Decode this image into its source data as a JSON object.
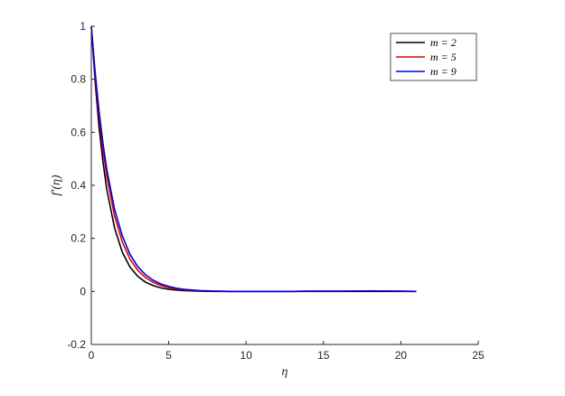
{
  "chart_data": {
    "type": "line",
    "xlabel": "η",
    "ylabel": "f′(η)",
    "xlim": [
      0,
      25
    ],
    "ylim": [
      -0.2,
      1
    ],
    "xticks": [
      "0",
      "5",
      "10",
      "15",
      "20",
      "25"
    ],
    "yticks": [
      "-0.2",
      "0",
      "0.2",
      "0.4",
      "0.6",
      "0.8",
      "1"
    ],
    "grid": false,
    "legend_position": "top-right",
    "x": [
      0,
      0.25,
      0.5,
      0.75,
      1,
      1.5,
      2,
      2.5,
      3,
      3.5,
      4,
      4.5,
      5,
      5.5,
      6,
      7,
      8,
      9,
      10,
      11,
      12,
      13,
      14,
      15,
      16,
      17,
      18,
      19,
      20,
      21
    ],
    "series": [
      {
        "name": "m = 2",
        "color": "#000000",
        "values": [
          1,
          0.79,
          0.62,
          0.49,
          0.385,
          0.24,
          0.148,
          0.092,
          0.057,
          0.035,
          0.022,
          0.013,
          0.008,
          0.005,
          0.003,
          0.001,
          0,
          0,
          0,
          0,
          0,
          0,
          0,
          0,
          0,
          0,
          0,
          0,
          0,
          0
        ]
      },
      {
        "name": "m = 5",
        "color": "#e00000",
        "values": [
          1,
          0.81,
          0.66,
          0.535,
          0.435,
          0.285,
          0.187,
          0.122,
          0.08,
          0.052,
          0.034,
          0.022,
          0.014,
          0.009,
          0.006,
          0.002,
          0.001,
          0,
          0,
          0,
          0,
          0,
          0.001,
          0.001,
          0.001,
          0.002,
          0.002,
          0.002,
          0.001,
          0
        ]
      },
      {
        "name": "m = 9",
        "color": "#0000e0",
        "values": [
          1,
          0.825,
          0.68,
          0.56,
          0.46,
          0.31,
          0.21,
          0.14,
          0.094,
          0.063,
          0.042,
          0.028,
          0.019,
          0.012,
          0.008,
          0.003,
          0.001,
          0,
          0,
          0,
          0,
          0,
          0.001,
          0.001,
          0.001,
          0.001,
          0.002,
          0.001,
          0.001,
          0
        ]
      }
    ]
  }
}
